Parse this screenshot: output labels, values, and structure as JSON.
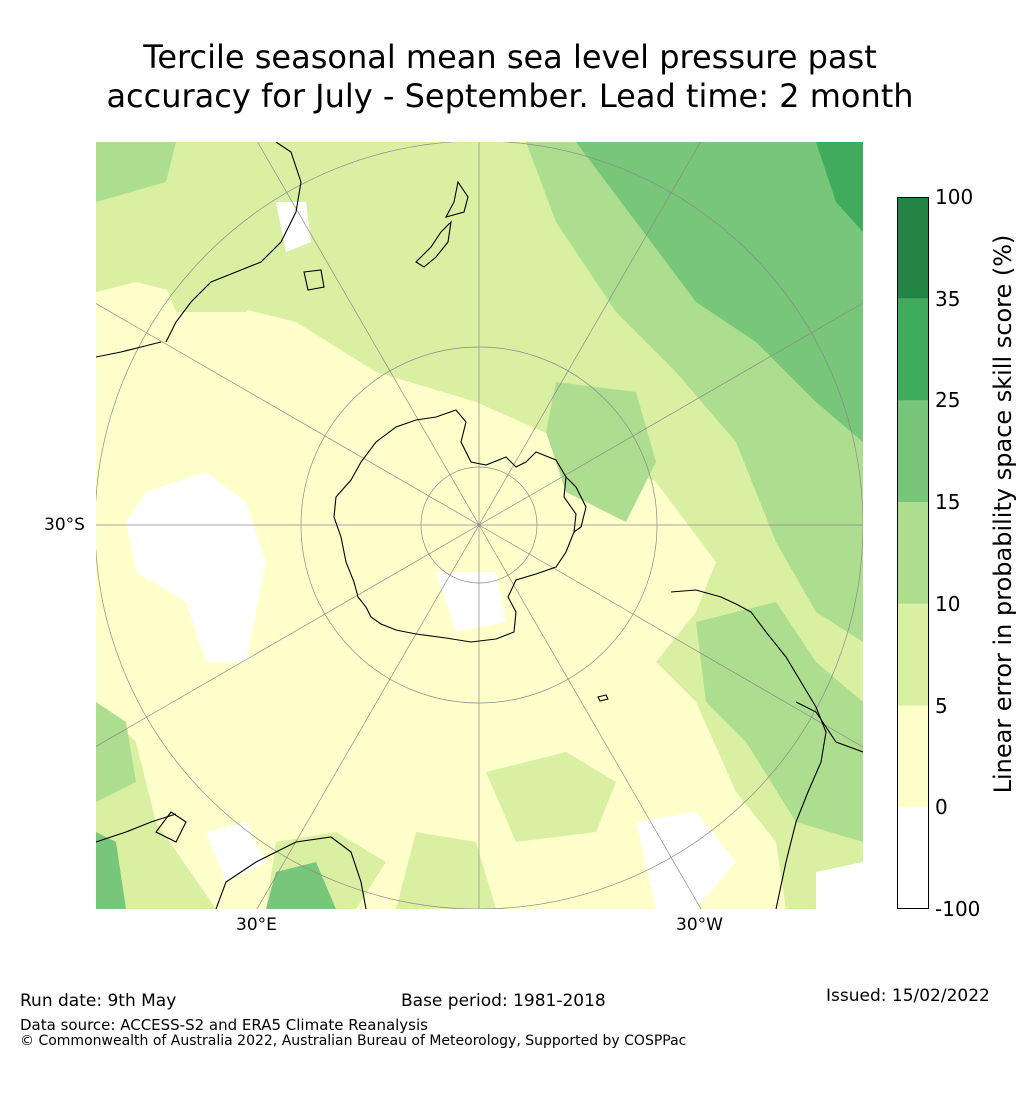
{
  "title_line1": "Tercile seasonal mean sea level pressure past",
  "title_line2": "accuracy for July - September. Lead time: 2 month",
  "map": {
    "projection": "south polar stereographic",
    "labels": {
      "lat": "30°S",
      "lon_east": "30°E",
      "lon_west": "30°W"
    },
    "land_colors": {
      "white": "#ffffff",
      "cream": "#ffffcc",
      "light_green": "#d9f0a3",
      "mid_green": "#addd8e",
      "green": "#78c679",
      "dark_green": "#41ab5d",
      "darkest_green": "#238443"
    }
  },
  "colorbar": {
    "label": "Linear error in probability space skill score (%)",
    "ticks": [
      "100",
      "35",
      "25",
      "15",
      "10",
      "5",
      "0",
      "-100"
    ],
    "bands": [
      {
        "range": "-100 to 0",
        "color": "#ffffff"
      },
      {
        "range": "0 to 5",
        "color": "#ffffcc"
      },
      {
        "range": "5 to 10",
        "color": "#d9f0a3"
      },
      {
        "range": "10 to 15",
        "color": "#addd8e"
      },
      {
        "range": "15 to 25",
        "color": "#78c679"
      },
      {
        "range": "25 to 35",
        "color": "#41ab5d"
      },
      {
        "range": "35 to 100",
        "color": "#238443"
      }
    ]
  },
  "footer": {
    "run_date": "Run date: 9th May",
    "base_period": "Base period: 1981-2018",
    "issued": "Issued: 15/02/2022",
    "data_source": "Data source: ACCESS-S2 and ERA5 Climate Reanalysis",
    "copyright": "© Commonwealth of Australia 2022, Australian Bureau of Meteorology, Supported by COSPPac"
  }
}
